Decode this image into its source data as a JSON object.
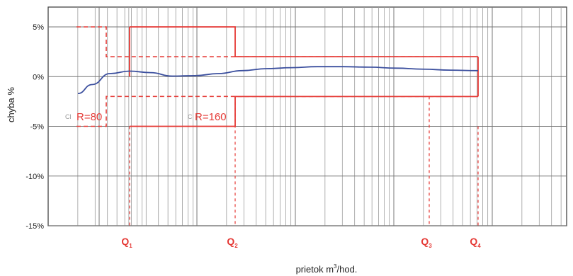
{
  "chart_data": {
    "type": "line",
    "title": "",
    "xlabel": "prietok m³/hod.",
    "xlabel_parts": {
      "main": "prietok m",
      "sup": "3",
      "rest": "/hod."
    },
    "ylabel": "chyba %",
    "x_scale": "log",
    "ylim": [
      -15,
      5
    ],
    "y_ticks": [
      {
        "value": 5,
        "label": "5%"
      },
      {
        "value": 0,
        "label": "0%"
      },
      {
        "value": -5,
        "label": "-5%"
      },
      {
        "value": -10,
        "label": "-10%"
      },
      {
        "value": -15,
        "label": "-15%"
      }
    ],
    "grid": true,
    "flow_points": [
      {
        "name": "Q1",
        "letter": "Q",
        "sub": "1"
      },
      {
        "name": "Q2",
        "letter": "Q",
        "sub": "2"
      },
      {
        "name": "Q3",
        "letter": "Q",
        "sub": "3"
      },
      {
        "name": "Q4",
        "letter": "Q",
        "sub": "4"
      }
    ],
    "ratio_labels": [
      {
        "text": "R=80",
        "ghost": "Cl"
      },
      {
        "text": "R=160",
        "ghost": "C"
      }
    ],
    "error_curve": {
      "color": "#3b4f9e",
      "y": [
        -1.7,
        -0.8,
        0.3,
        0.55,
        0.4,
        0.05,
        0.1,
        0.3,
        0.6,
        0.8,
        0.9,
        1.0,
        1.0,
        0.95,
        0.85,
        0.75,
        0.65,
        0.6
      ]
    },
    "limit_color": "#e53935",
    "limits_R80": {
      "upper_low": 5,
      "upper_high": 2,
      "lower_low": -5,
      "lower_high": -2
    },
    "limits_R160": {
      "upper_low": 5,
      "upper_high": 2,
      "lower_low": -5,
      "lower_high": -2
    }
  }
}
